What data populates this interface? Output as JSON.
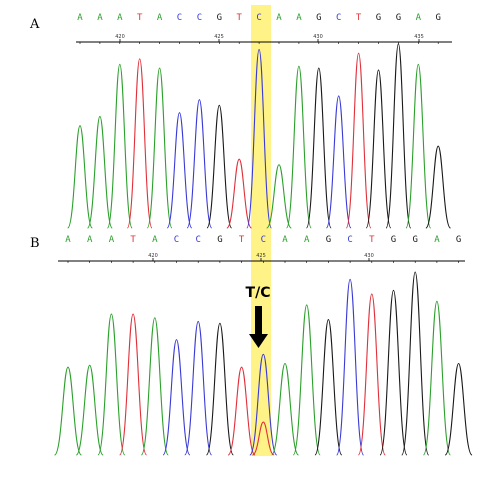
{
  "colors": {
    "A": "#2ca02c",
    "C": "#3a3ad6",
    "G": "#1a1a1a",
    "T": "#e0303a",
    "highlight": "#fff27a"
  },
  "panels": [
    {
      "label": "A",
      "bases": [
        "A",
        "A",
        "A",
        "T",
        "A",
        "C",
        "C",
        "G",
        "T",
        "C",
        "A",
        "A",
        "G",
        "C",
        "T",
        "G",
        "G",
        "A",
        "G"
      ],
      "tick_labels": [
        "420",
        "425",
        "430",
        "435"
      ],
      "peak_heights": [
        0.55,
        0.6,
        0.88,
        0.91,
        0.86,
        0.62,
        0.69,
        0.66,
        0.37,
        0.96,
        0.34,
        0.87,
        0.86,
        0.71,
        0.94,
        0.85,
        0.99,
        0.88,
        0.44
      ],
      "secondary_peak": null
    },
    {
      "label": "B",
      "bases": [
        "A",
        "A",
        "A",
        "T",
        "A",
        "C",
        "C",
        "G",
        "T",
        "C",
        "A",
        "A",
        "G",
        "C",
        "T",
        "G",
        "G",
        "A",
        "G"
      ],
      "tick_labels": [
        "420",
        "425",
        "430"
      ],
      "peak_heights": [
        0.48,
        0.49,
        0.77,
        0.77,
        0.75,
        0.63,
        0.73,
        0.72,
        0.48,
        0.55,
        0.5,
        0.82,
        0.74,
        0.96,
        0.88,
        0.9,
        1.0,
        0.84,
        0.5
      ],
      "secondary_peak": {
        "index": 9,
        "base": "T",
        "height": 0.18
      }
    }
  ],
  "annotation": {
    "text": "T/C"
  }
}
